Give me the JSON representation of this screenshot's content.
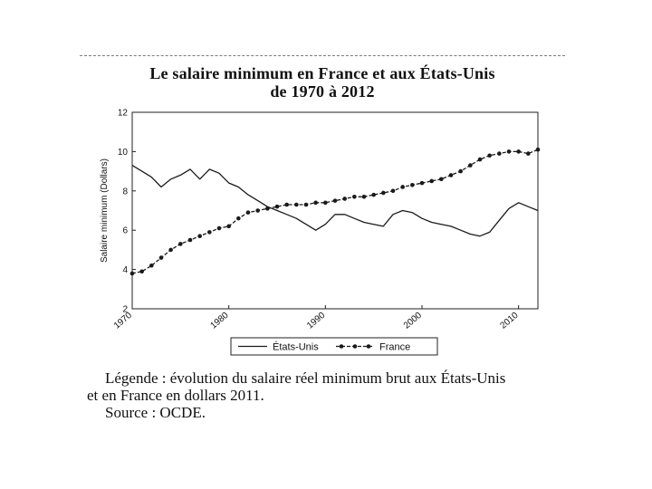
{
  "header": {
    "title_line1": "Le salaire minimum en France et aux États-Unis",
    "title_line2": "de 1970 à 2012"
  },
  "caption": {
    "line1": "Légende : évolution du salaire réel minimum brut aux États-Unis",
    "line2": "et en France en dollars 2011.",
    "line3": "Source : OCDE."
  },
  "chart_data": {
    "type": "line",
    "title": "Le salaire minimum en France et aux États-Unis de 1970 à 2012",
    "ylabel": "Salaire minimum (Dollars)",
    "xlabel": "",
    "xlim": [
      1970,
      2012
    ],
    "ylim": [
      2,
      12
    ],
    "x_ticks": [
      1970,
      1980,
      1990,
      2000,
      2010
    ],
    "y_ticks": [
      2,
      4,
      6,
      8,
      10,
      12
    ],
    "x_tick_labels": [
      "1970",
      "1980",
      "1990",
      "2000",
      "2010"
    ],
    "y_tick_labels": [
      "2",
      "4",
      "6",
      "8",
      "10",
      "12"
    ],
    "grid": false,
    "legend_position": "bottom",
    "x": [
      1970,
      1971,
      1972,
      1973,
      1974,
      1975,
      1976,
      1977,
      1978,
      1979,
      1980,
      1981,
      1982,
      1983,
      1984,
      1985,
      1986,
      1987,
      1988,
      1989,
      1990,
      1991,
      1992,
      1993,
      1994,
      1995,
      1996,
      1997,
      1998,
      1999,
      2000,
      2001,
      2002,
      2003,
      2004,
      2005,
      2006,
      2007,
      2008,
      2009,
      2010,
      2011,
      2012
    ],
    "series": [
      {
        "name": "États-Unis",
        "style": "solid",
        "color": "#1a1a1a",
        "values": [
          9.3,
          9.0,
          8.7,
          8.2,
          8.6,
          8.8,
          9.1,
          8.6,
          9.1,
          8.9,
          8.4,
          8.2,
          7.8,
          7.5,
          7.2,
          7.0,
          6.8,
          6.6,
          6.3,
          6.0,
          6.3,
          6.8,
          6.8,
          6.6,
          6.4,
          6.3,
          6.2,
          6.8,
          7.0,
          6.9,
          6.6,
          6.4,
          6.3,
          6.2,
          6.0,
          5.8,
          5.7,
          5.9,
          6.5,
          7.1,
          7.4,
          7.2,
          7.0
        ]
      },
      {
        "name": "France",
        "style": "dashed-dots",
        "color": "#1a1a1a",
        "values": [
          3.8,
          3.9,
          4.2,
          4.6,
          5.0,
          5.3,
          5.5,
          5.7,
          5.9,
          6.1,
          6.2,
          6.6,
          6.9,
          7.0,
          7.1,
          7.2,
          7.3,
          7.3,
          7.3,
          7.4,
          7.4,
          7.5,
          7.6,
          7.7,
          7.7,
          7.8,
          7.9,
          8.0,
          8.2,
          8.3,
          8.4,
          8.5,
          8.6,
          8.8,
          9.0,
          9.3,
          9.6,
          9.8,
          9.9,
          10.0,
          10.0,
          9.9,
          10.1
        ]
      }
    ]
  }
}
